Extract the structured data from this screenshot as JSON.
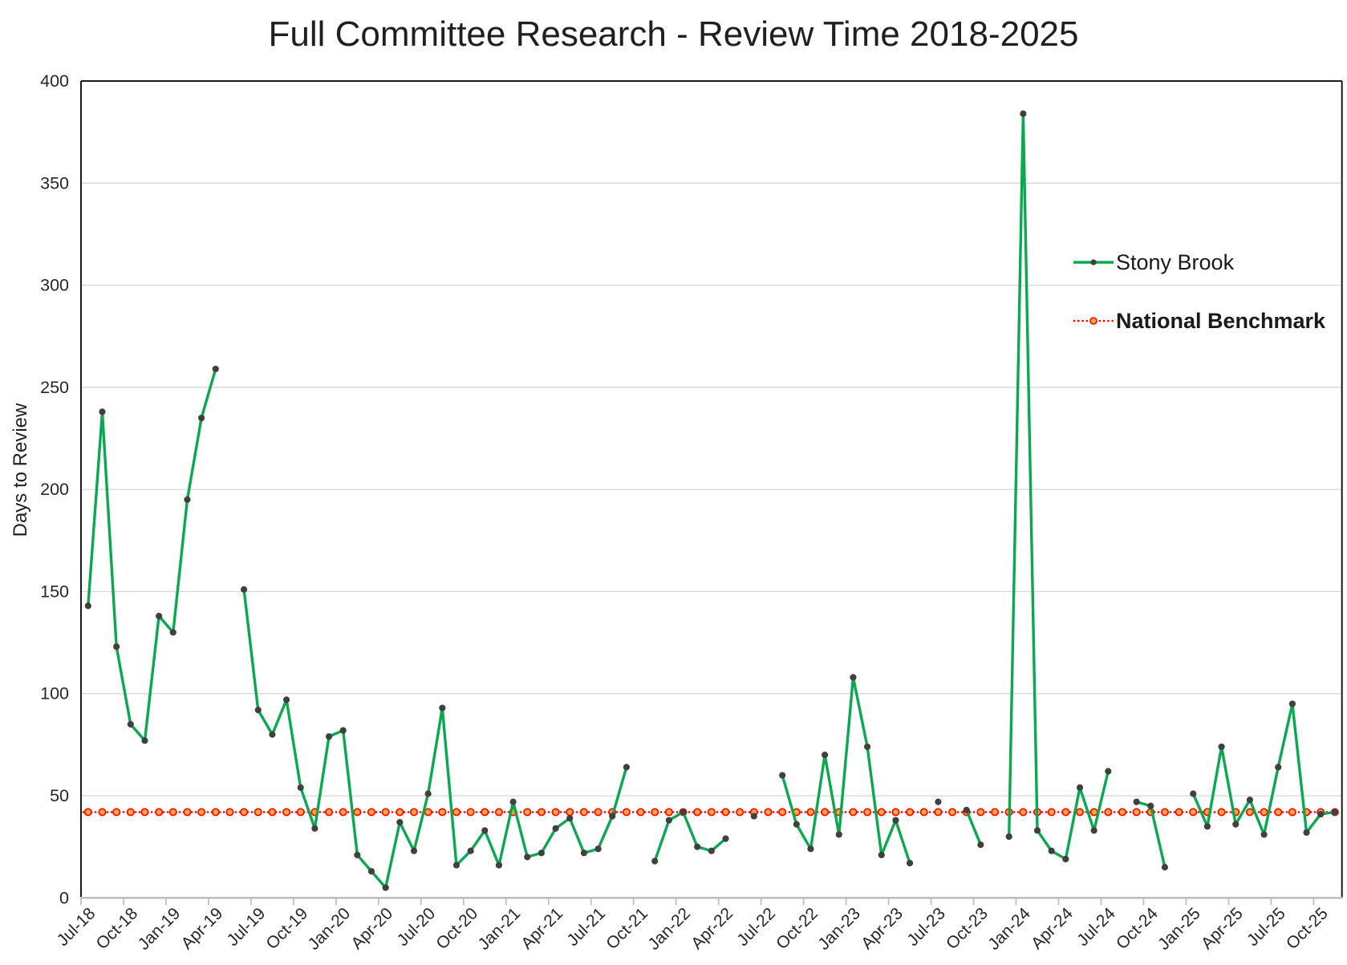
{
  "title": "Full Committee Research - Review Time 2018-2025",
  "chart_data": {
    "type": "line",
    "title": "Full Committee Research - Review Time 2018-2025",
    "xlabel": "",
    "ylabel": "Days to Review",
    "ylim": [
      0,
      400
    ],
    "y_ticks": [
      0,
      50,
      100,
      150,
      200,
      250,
      300,
      350,
      400
    ],
    "grid": "horizontal",
    "legend_position": "inside-right",
    "x_tick_labels": [
      "Jul-18",
      "Oct-18",
      "Jan-19",
      "Apr-19",
      "Jul-19",
      "Oct-19",
      "Jan-20",
      "Apr-20",
      "Jul-20",
      "Oct-20",
      "Jan-21",
      "Apr-21",
      "Jul-21",
      "Oct-21",
      "Jan-22",
      "Apr-22",
      "Jul-22",
      "Oct-22",
      "Jan-23",
      "Apr-23",
      "Jul-23",
      "Oct-23",
      "Jan-24",
      "Apr-24",
      "Jul-24",
      "Oct-24",
      "Jan-25",
      "Apr-25",
      "Jul-25",
      "Oct-25"
    ],
    "categories": [
      "Jul-18",
      "Aug-18",
      "Sep-18",
      "Oct-18",
      "Nov-18",
      "Dec-18",
      "Jan-19",
      "Feb-19",
      "Mar-19",
      "Apr-19",
      "May-19",
      "Jun-19",
      "Jul-19",
      "Aug-19",
      "Sep-19",
      "Oct-19",
      "Nov-19",
      "Dec-19",
      "Jan-20",
      "Feb-20",
      "Mar-20",
      "Apr-20",
      "May-20",
      "Jun-20",
      "Jul-20",
      "Aug-20",
      "Sep-20",
      "Oct-20",
      "Nov-20",
      "Dec-20",
      "Jan-21",
      "Feb-21",
      "Mar-21",
      "Apr-21",
      "May-21",
      "Jun-21",
      "Jul-21",
      "Aug-21",
      "Sep-21",
      "Oct-21",
      "Nov-21",
      "Dec-21",
      "Jan-22",
      "Feb-22",
      "Mar-22",
      "Apr-22",
      "May-22",
      "Jun-22",
      "Jul-22",
      "Aug-22",
      "Sep-22",
      "Oct-22",
      "Nov-22",
      "Dec-22",
      "Jan-23",
      "Feb-23",
      "Mar-23",
      "Apr-23",
      "May-23",
      "Jun-23",
      "Jul-23",
      "Aug-23",
      "Sep-23",
      "Oct-23",
      "Nov-23",
      "Dec-23",
      "Jan-24",
      "Feb-24",
      "Mar-24",
      "Apr-24",
      "May-24",
      "Jun-24",
      "Jul-24",
      "Aug-24",
      "Sep-24",
      "Oct-24",
      "Nov-24",
      "Dec-24",
      "Jan-25",
      "Feb-25",
      "Mar-25",
      "Apr-25",
      "May-25",
      "Jun-25",
      "Jul-25",
      "Aug-25",
      "Sep-25",
      "Oct-25",
      "Nov-25"
    ],
    "series": [
      {
        "name": "Stony Brook",
        "type": "line",
        "color": "#0aa84f",
        "marker_color": "#404040",
        "values": [
          143,
          238,
          123,
          85,
          77,
          138,
          130,
          195,
          235,
          259,
          null,
          151,
          92,
          80,
          97,
          54,
          34,
          79,
          82,
          21,
          13,
          5,
          37,
          23,
          51,
          93,
          16,
          23,
          33,
          16,
          47,
          20,
          22,
          34,
          39,
          22,
          24,
          40,
          64,
          null,
          18,
          38,
          42,
          25,
          23,
          29,
          null,
          40,
          null,
          60,
          36,
          24,
          70,
          31,
          108,
          74,
          21,
          38,
          17,
          null,
          47,
          null,
          43,
          26,
          null,
          30,
          384,
          33,
          23,
          19,
          54,
          33,
          62,
          null,
          47,
          45,
          15,
          null,
          51,
          35,
          74,
          36,
          48,
          31,
          64,
          95,
          32,
          41,
          42
        ]
      },
      {
        "name": "National Benchmark",
        "type": "line",
        "style": "dotted",
        "color": "#ff0000",
        "marker_fill": "#ffa63d",
        "marker_stroke": "#ff0000",
        "constant_value": 42
      }
    ]
  },
  "axes": {
    "y_title": "Days to Review"
  },
  "colors": {
    "gridline": "#d9d9d9",
    "plot_border": "#1a1a1a",
    "x_axis_line": "#bfbfbf",
    "tick_label": "#262626",
    "background": "#ffffff"
  }
}
